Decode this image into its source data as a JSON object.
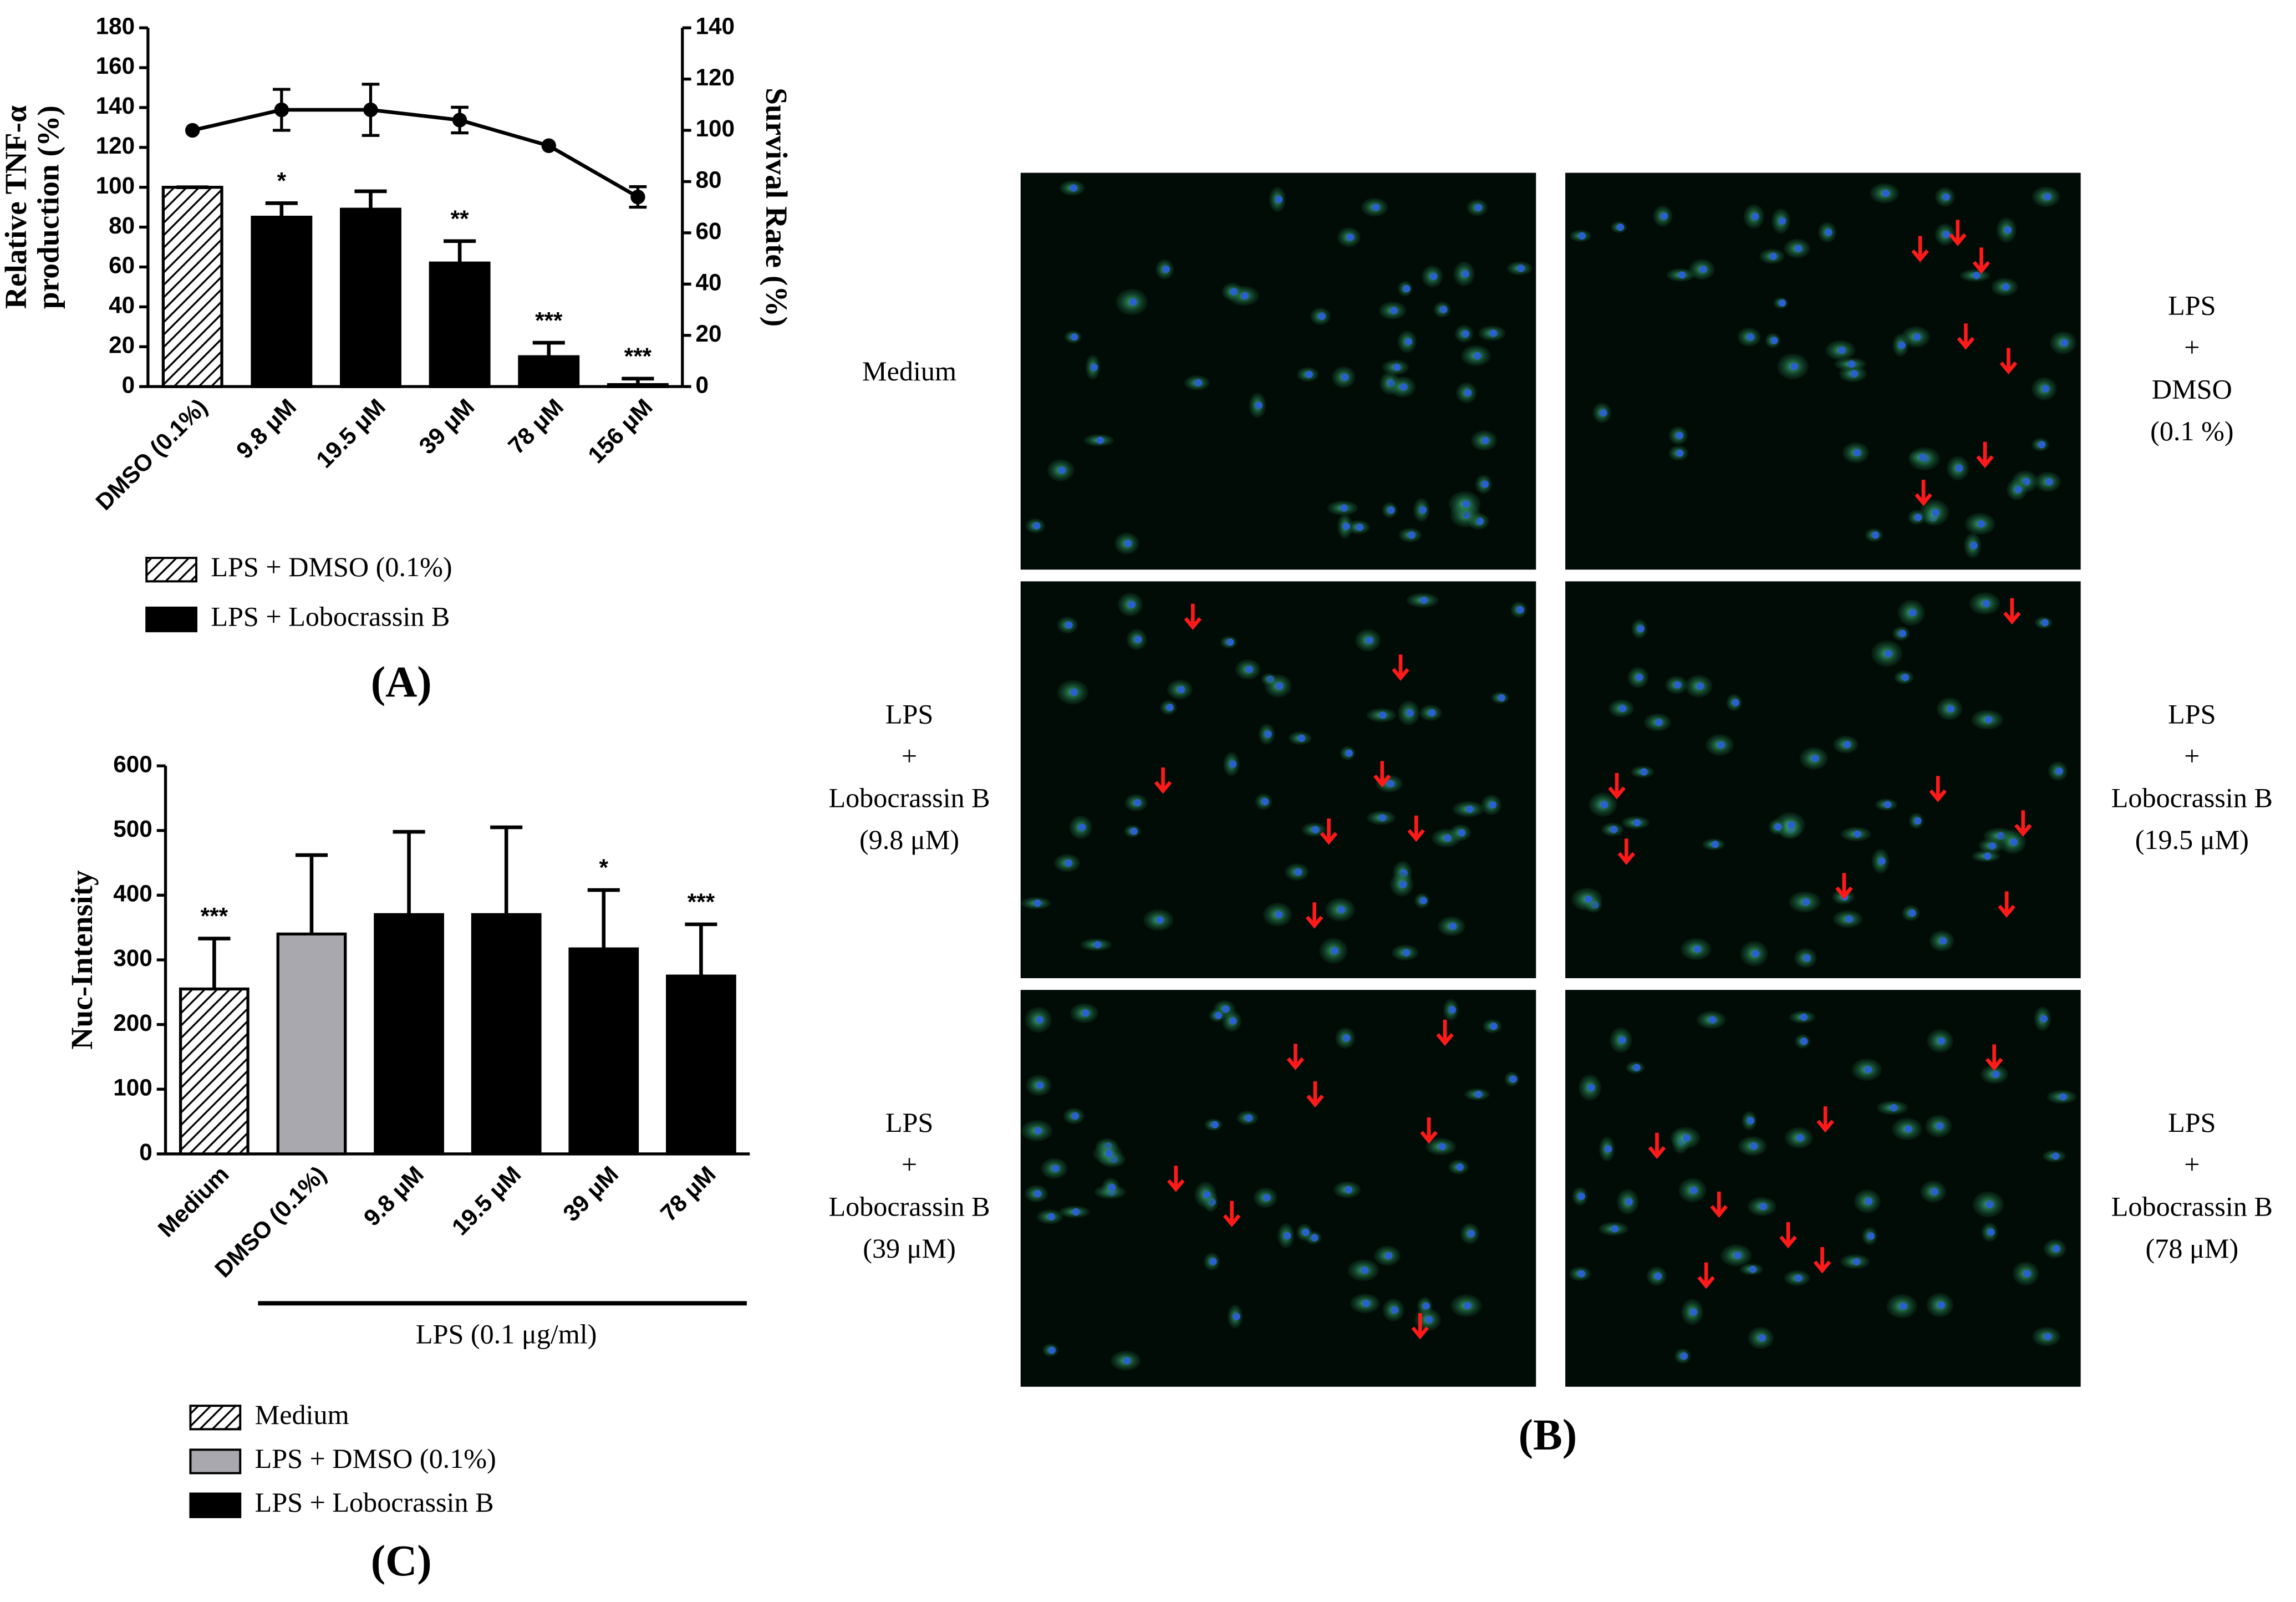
{
  "chart_data": [
    {
      "type": "bar",
      "panel_label": "(A)",
      "categories": [
        "DMSO (0.1%)",
        "9.8 μM",
        "19.5 μM",
        "39 μM",
        "78 μM",
        "156 μM"
      ],
      "values": [
        100,
        85,
        89,
        62,
        15,
        1
      ],
      "errors": [
        0,
        7,
        9,
        11,
        7,
        3
      ],
      "annotations": [
        null,
        "*",
        null,
        "**",
        "***",
        "***"
      ],
      "bar_fills": [
        "hatch",
        "#000000",
        "#000000",
        "#000000",
        "#000000",
        "#000000"
      ],
      "ylabel": [
        "Relative TNF-α",
        "production (%)"
      ],
      "ylim": [
        0,
        180
      ],
      "yticks": [
        0,
        20,
        40,
        60,
        80,
        100,
        120,
        140,
        160,
        180
      ],
      "y2label": "Survival Rate (%)",
      "y2lim": [
        0,
        140
      ],
      "y2ticks": [
        0,
        20,
        40,
        60,
        80,
        100,
        120,
        140
      ],
      "line": {
        "axis": "y2",
        "color": "#000000",
        "values": [
          100,
          108,
          108,
          104,
          94,
          74
        ],
        "errors": [
          0,
          8,
          10,
          5,
          0,
          4
        ]
      },
      "legend": [
        {
          "label": "LPS + DMSO (0.1%)",
          "fill": "hatch"
        },
        {
          "label": "LPS + Lobocrassin B",
          "fill": "#000000"
        }
      ]
    },
    {
      "type": "bar",
      "panel_label": "(C)",
      "categories": [
        "Medium",
        "DMSO (0.1%)",
        "9.8 μM",
        "19.5 μM",
        "39 μM",
        "78 μM"
      ],
      "values": [
        255,
        340,
        370,
        370,
        317,
        275
      ],
      "errors": [
        78,
        122,
        128,
        135,
        91,
        80
      ],
      "annotations": [
        "***",
        null,
        null,
        null,
        "*",
        "***"
      ],
      "bar_fills": [
        "hatch",
        "#a8a8ae",
        "#000000",
        "#000000",
        "#000000",
        "#000000"
      ],
      "ylabel": [
        "Nuc-Intensity"
      ],
      "ylim": [
        0,
        600
      ],
      "yticks": [
        0,
        100,
        200,
        300,
        400,
        500,
        600
      ],
      "group_label": "LPS (0.1 μg/ml)",
      "legend": [
        {
          "label": "Medium",
          "fill": "hatch"
        },
        {
          "label": "LPS + DMSO (0.1%)",
          "fill": "#a8a8ae"
        },
        {
          "label": "LPS + Lobocrassin B",
          "fill": "#000000"
        }
      ]
    }
  ],
  "panel_b": {
    "panel_label": "(B)",
    "images": [
      {
        "lines": [
          "Medium"
        ]
      },
      {
        "lines": [
          "LPS",
          "+",
          "DMSO",
          "(0.1 %)"
        ]
      },
      {
        "lines": [
          "LPS",
          "+",
          "Lobocrassin B",
          "(9.8 μM)"
        ]
      },
      {
        "lines": [
          "LPS",
          "+",
          "Lobocrassin B",
          "(19.5 μM)"
        ]
      },
      {
        "lines": [
          "LPS",
          "+",
          "Lobocrassin B",
          "(39 μM)"
        ]
      },
      {
        "lines": [
          "LPS",
          "+",
          "Lobocrassin B",
          "(78 μM)"
        ]
      }
    ]
  }
}
